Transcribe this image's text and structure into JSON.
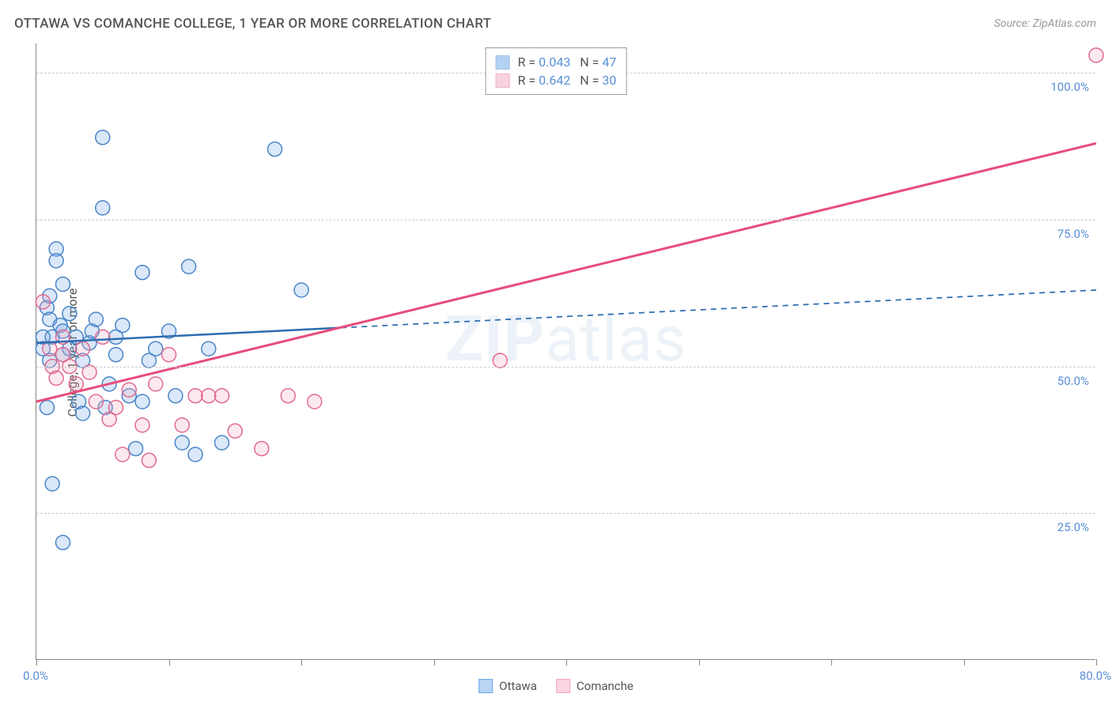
{
  "title": "OTTAWA VS COMANCHE COLLEGE, 1 YEAR OR MORE CORRELATION CHART",
  "source": "Source: ZipAtlas.com",
  "y_axis_label": "College, 1 year or more",
  "watermark": {
    "prefix": "ZIP",
    "suffix": "atlas"
  },
  "chart": {
    "type": "scatter",
    "xlim": [
      0,
      80
    ],
    "ylim": [
      0,
      105
    ],
    "x_ticks": [
      0,
      10,
      20,
      30,
      40,
      50,
      60,
      70,
      80
    ],
    "x_tick_labels": {
      "0": "0.0%",
      "80": "80.0%"
    },
    "y_gridlines": [
      25,
      50,
      75,
      100
    ],
    "y_tick_labels": {
      "25": "25.0%",
      "50": "50.0%",
      "75": "75.0%",
      "100": "100.0%"
    },
    "grid_color": "#cccccc",
    "background_color": "#ffffff",
    "marker_radius": 9,
    "marker_stroke_width": 1.5,
    "marker_fill_opacity": 0.25,
    "series": [
      {
        "name": "Ottawa",
        "color": "#6aa5e8",
        "stroke": "#4a85c8",
        "r": "0.043",
        "n": "47",
        "trend": {
          "x1": 0,
          "y1": 54,
          "x2": 80,
          "y2": 63,
          "solid_until_x": 23,
          "color": "#2b6cb0",
          "width": 2.5
        },
        "points": [
          [
            0.5,
            55
          ],
          [
            0.5,
            53
          ],
          [
            0.8,
            60
          ],
          [
            1,
            58
          ],
          [
            1,
            62
          ],
          [
            1,
            51
          ],
          [
            1.2,
            55
          ],
          [
            1.5,
            70
          ],
          [
            1.5,
            68
          ],
          [
            1.8,
            57
          ],
          [
            2,
            56
          ],
          [
            2,
            52
          ],
          [
            2,
            64
          ],
          [
            2.5,
            59
          ],
          [
            2.5,
            53
          ],
          [
            3,
            55
          ],
          [
            3.2,
            44
          ],
          [
            3.5,
            51
          ],
          [
            3.5,
            42
          ],
          [
            4,
            54
          ],
          [
            4.2,
            56
          ],
          [
            4.5,
            58
          ],
          [
            5,
            89
          ],
          [
            5,
            77
          ],
          [
            5.2,
            43
          ],
          [
            5.5,
            47
          ],
          [
            6,
            52
          ],
          [
            6,
            55
          ],
          [
            6.5,
            57
          ],
          [
            7,
            45
          ],
          [
            7.5,
            36
          ],
          [
            8,
            66
          ],
          [
            8,
            44
          ],
          [
            8.5,
            51
          ],
          [
            9,
            53
          ],
          [
            10,
            56
          ],
          [
            10.5,
            45
          ],
          [
            11,
            37
          ],
          [
            11.5,
            67
          ],
          [
            12,
            35
          ],
          [
            13,
            53
          ],
          [
            14,
            37
          ],
          [
            18,
            87
          ],
          [
            1.2,
            30
          ],
          [
            2,
            20
          ],
          [
            0.8,
            43
          ],
          [
            20,
            63
          ]
        ]
      },
      {
        "name": "Comanche",
        "color": "#f2a6bd",
        "stroke": "#e06a92",
        "r": "0.642",
        "n": "30",
        "trend": {
          "x1": 0,
          "y1": 44,
          "x2": 80,
          "y2": 88,
          "solid_until_x": 80,
          "color": "#e84c7a",
          "width": 3
        },
        "points": [
          [
            0.5,
            61
          ],
          [
            1,
            53
          ],
          [
            1.2,
            50
          ],
          [
            1.5,
            48
          ],
          [
            2,
            52
          ],
          [
            2,
            55
          ],
          [
            2.5,
            50
          ],
          [
            3,
            47
          ],
          [
            3.5,
            53
          ],
          [
            4,
            49
          ],
          [
            4.5,
            44
          ],
          [
            5,
            55
          ],
          [
            5.5,
            41
          ],
          [
            6,
            43
          ],
          [
            6.5,
            35
          ],
          [
            7,
            46
          ],
          [
            8,
            40
          ],
          [
            8.5,
            34
          ],
          [
            9,
            47
          ],
          [
            10,
            52
          ],
          [
            11,
            40
          ],
          [
            12,
            45
          ],
          [
            13,
            45
          ],
          [
            14,
            45
          ],
          [
            15,
            39
          ],
          [
            17,
            36
          ],
          [
            19,
            45
          ],
          [
            21,
            44
          ],
          [
            35,
            51
          ],
          [
            80,
            103
          ]
        ]
      }
    ]
  },
  "legend_bottom": [
    {
      "label": "Ottawa",
      "fill": "#b8d4f5",
      "stroke": "#6aa5e8"
    },
    {
      "label": "Comanche",
      "fill": "#fbd5e1",
      "stroke": "#f2a6bd"
    }
  ]
}
